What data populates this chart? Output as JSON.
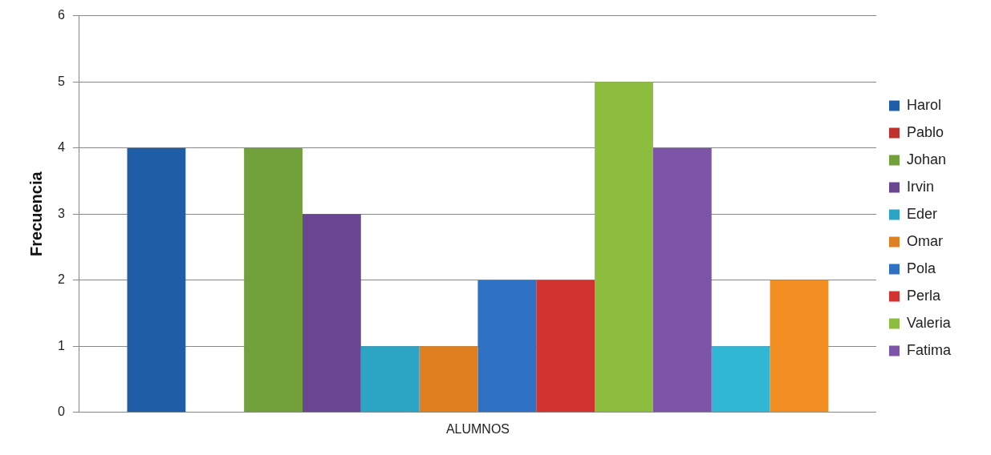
{
  "chart_data": {
    "type": "bar",
    "ylabel": "Frecuencia",
    "categories": [
      "ALUMNOS"
    ],
    "series": [
      {
        "name": "Harol",
        "color": "#1f5ea6",
        "values": [
          4
        ]
      },
      {
        "name": "Pablo",
        "color": "#c0302c",
        "values": [
          0
        ]
      },
      {
        "name": "Johan",
        "color": "#72a03a",
        "values": [
          4
        ]
      },
      {
        "name": "Irvin",
        "color": "#6a4592",
        "values": [
          3
        ]
      },
      {
        "name": "Eder",
        "color": "#2ba5c3",
        "values": [
          1
        ]
      },
      {
        "name": "Omar",
        "color": "#e07f1f",
        "values": [
          1
        ]
      },
      {
        "name": "Pola",
        "color": "#2f72c4",
        "values": [
          2
        ]
      },
      {
        "name": "Perla",
        "color": "#d23330",
        "values": [
          2
        ]
      },
      {
        "name": "Valeria",
        "color": "#8cbd3f",
        "values": [
          5
        ]
      },
      {
        "name": "Fatima",
        "color": "#7d55a8",
        "values": [
          4
        ]
      },
      {
        "color": "#31b7d6",
        "values": [
          1
        ]
      },
      {
        "color": "#f28e22",
        "values": [
          2
        ]
      }
    ],
    "ylim": [
      0,
      6
    ],
    "yticks": [
      0,
      1,
      2,
      3,
      4,
      5,
      6
    ],
    "grid": "y",
    "legend": "right"
  }
}
